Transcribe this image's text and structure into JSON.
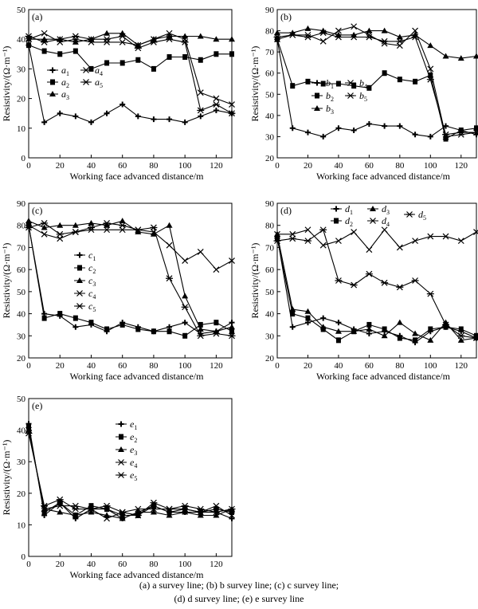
{
  "chart_data": [
    {
      "type": "line",
      "panel_label": "(a)",
      "xlabel": "Working face advanced distance/m",
      "ylabel": "Resistivity/(Ω·m⁻¹)",
      "xlim": [
        0,
        130
      ],
      "ylim": [
        0,
        50
      ],
      "xticks": [
        0,
        20,
        40,
        60,
        80,
        100,
        120
      ],
      "yticks": [
        0,
        10,
        20,
        30,
        40,
        50
      ],
      "legend_position": "center-left",
      "x": [
        0,
        10,
        20,
        30,
        40,
        50,
        60,
        70,
        80,
        90,
        100,
        110,
        120,
        130
      ],
      "series": [
        {
          "name": "a",
          "sub": "1",
          "marker": "plus",
          "values": [
            38,
            12,
            15,
            14,
            12,
            15,
            18,
            14,
            13,
            13,
            12,
            14,
            16,
            15
          ]
        },
        {
          "name": "a",
          "sub": "2",
          "marker": "square",
          "values": [
            38,
            36,
            35,
            36,
            30,
            32,
            32,
            33,
            30,
            34,
            34,
            33,
            35,
            35
          ]
        },
        {
          "name": "a",
          "sub": "3",
          "marker": "tri",
          "values": [
            40,
            40,
            40,
            39,
            40,
            42,
            42,
            38,
            40,
            41,
            41,
            41,
            40,
            40
          ]
        },
        {
          "name": "a",
          "sub": "4",
          "marker": "x",
          "values": [
            40,
            42,
            39,
            40,
            39,
            39,
            39,
            38,
            40,
            42,
            40,
            22,
            20,
            18
          ]
        },
        {
          "name": "a",
          "sub": "5",
          "marker": "star",
          "values": [
            41,
            39,
            40,
            41,
            40,
            40,
            41,
            37,
            39,
            40,
            39,
            16,
            18,
            15
          ]
        }
      ]
    },
    {
      "type": "line",
      "panel_label": "(b)",
      "xlabel": "Working face advanced distance/m",
      "ylabel": "Resistivity/(Ω·m⁻¹)",
      "xlim": [
        0,
        130
      ],
      "ylim": [
        20,
        90
      ],
      "xticks": [
        0,
        20,
        40,
        60,
        80,
        100,
        120
      ],
      "yticks": [
        20,
        30,
        40,
        50,
        60,
        70,
        80,
        90
      ],
      "legend_position": "center",
      "x": [
        0,
        10,
        20,
        30,
        40,
        50,
        60,
        70,
        80,
        90,
        100,
        110,
        120,
        130
      ],
      "series": [
        {
          "name": "b",
          "sub": "1",
          "marker": "plus",
          "values": [
            76,
            34,
            32,
            30,
            34,
            33,
            36,
            35,
            35,
            31,
            30,
            35,
            33,
            31
          ]
        },
        {
          "name": "b",
          "sub": "2",
          "marker": "square",
          "values": [
            76,
            54,
            56,
            55,
            55,
            54,
            53,
            60,
            57,
            56,
            59,
            29,
            33,
            34
          ]
        },
        {
          "name": "b",
          "sub": "3",
          "marker": "tri",
          "values": [
            79,
            79,
            81,
            80,
            78,
            78,
            80,
            80,
            77,
            78,
            73,
            68,
            67,
            68
          ]
        },
        {
          "name": "b",
          "sub": "4",
          "marker": "x",
          "values": [
            76,
            78,
            78,
            75,
            80,
            82,
            78,
            74,
            73,
            80,
            62,
            30,
            31,
            32
          ]
        },
        {
          "name": "b",
          "sub": "5",
          "marker": "star",
          "values": [
            77,
            78,
            77,
            79,
            77,
            77,
            77,
            75,
            75,
            77,
            57,
            31,
            32,
            32
          ]
        }
      ]
    },
    {
      "type": "line",
      "panel_label": "(c)",
      "xlabel": "Working face advanced distance/m",
      "ylabel": "Resistivity/(Ω·m⁻¹)",
      "xlim": [
        0,
        130
      ],
      "ylim": [
        20,
        90
      ],
      "xticks": [
        0,
        20,
        40,
        60,
        80,
        100,
        120
      ],
      "yticks": [
        20,
        30,
        40,
        50,
        60,
        70,
        80,
        90
      ],
      "legend_position": "center-left",
      "x": [
        0,
        10,
        20,
        30,
        40,
        50,
        60,
        70,
        80,
        90,
        100,
        110,
        120,
        130
      ],
      "series": [
        {
          "name": "c",
          "sub": "1",
          "marker": "plus",
          "values": [
            80,
            40,
            39,
            34,
            35,
            32,
            36,
            34,
            32,
            34,
            36,
            31,
            32,
            36
          ]
        },
        {
          "name": "c",
          "sub": "2",
          "marker": "square",
          "values": [
            80,
            38,
            40,
            38,
            36,
            33,
            35,
            33,
            32,
            32,
            30,
            35,
            36,
            32
          ]
        },
        {
          "name": "c",
          "sub": "3",
          "marker": "tri",
          "values": [
            82,
            79,
            80,
            80,
            81,
            80,
            82,
            77,
            76,
            80,
            48,
            33,
            32,
            34
          ]
        },
        {
          "name": "c",
          "sub": "4",
          "marker": "x",
          "values": [
            80,
            76,
            74,
            77,
            78,
            78,
            78,
            78,
            77,
            71,
            64,
            68,
            60,
            64
          ]
        },
        {
          "name": "c",
          "sub": "5",
          "marker": "star",
          "values": [
            79,
            81,
            76,
            77,
            79,
            81,
            80,
            78,
            79,
            56,
            43,
            30,
            31,
            30
          ]
        }
      ]
    },
    {
      "type": "line",
      "panel_label": "(d)",
      "xlabel": "Working face advanced distance/m",
      "ylabel": "Resistivity/(Ω·m⁻¹)",
      "xlim": [
        0,
        130
      ],
      "ylim": [
        20,
        90
      ],
      "xticks": [
        0,
        20,
        40,
        60,
        80,
        100,
        120
      ],
      "yticks": [
        20,
        30,
        40,
        50,
        60,
        70,
        80,
        90
      ],
      "legend_position": "top",
      "x": [
        0,
        10,
        20,
        30,
        40,
        50,
        60,
        70,
        80,
        90,
        100,
        110,
        120,
        130
      ],
      "series": [
        {
          "name": "d",
          "sub": "1",
          "marker": "plus",
          "values": [
            75,
            34,
            36,
            38,
            36,
            33,
            31,
            32,
            30,
            27,
            32,
            34,
            32,
            29
          ]
        },
        {
          "name": "d",
          "sub": "2",
          "marker": "square",
          "values": [
            74,
            40,
            38,
            33,
            28,
            32,
            35,
            33,
            29,
            28,
            33,
            34,
            33,
            30
          ]
        },
        {
          "name": "d",
          "sub": "3",
          "marker": "tri",
          "values": [
            76,
            42,
            41,
            34,
            32,
            32,
            33,
            30,
            36,
            31,
            28,
            36,
            28,
            29
          ]
        },
        {
          "name": "d",
          "sub": "4",
          "marker": "x",
          "values": [
            76,
            76,
            78,
            71,
            73,
            77,
            69,
            78,
            70,
            73,
            75,
            75,
            73,
            77
          ]
        },
        {
          "name": "d",
          "sub": "5",
          "marker": "star",
          "values": [
            73,
            74,
            73,
            78,
            55,
            53,
            58,
            54,
            52,
            55,
            49,
            35,
            30,
            29
          ]
        }
      ]
    },
    {
      "type": "line",
      "panel_label": "(e)",
      "xlabel": "Working face advanced distance/m",
      "ylabel": "Resistivity/(Ω·m⁻¹)",
      "xlim": [
        0,
        130
      ],
      "ylim": [
        0,
        50
      ],
      "xticks": [
        0,
        20,
        40,
        60,
        80,
        100,
        120
      ],
      "yticks": [
        0,
        10,
        20,
        30,
        40,
        50
      ],
      "legend_position": "center",
      "x": [
        0,
        10,
        20,
        30,
        40,
        50,
        60,
        70,
        80,
        90,
        100,
        110,
        120,
        130
      ],
      "series": [
        {
          "name": "e",
          "sub": "1",
          "marker": "plus",
          "values": [
            42,
            13,
            17,
            12,
            15,
            15,
            12,
            14,
            16,
            14,
            14,
            14,
            14,
            12
          ]
        },
        {
          "name": "e",
          "sub": "2",
          "marker": "square",
          "values": [
            41,
            14,
            17,
            13,
            16,
            15,
            13,
            13,
            16,
            14,
            15,
            14,
            15,
            14
          ]
        },
        {
          "name": "e",
          "sub": "3",
          "marker": "tri",
          "values": [
            40,
            15,
            14,
            13,
            14,
            13,
            12,
            14,
            14,
            13,
            14,
            13,
            13,
            15
          ]
        },
        {
          "name": "e",
          "sub": "4",
          "marker": "x",
          "values": [
            40,
            15,
            16,
            16,
            15,
            12,
            14,
            15,
            15,
            15,
            15,
            14,
            16,
            13
          ]
        },
        {
          "name": "e",
          "sub": "5",
          "marker": "star",
          "values": [
            39,
            16,
            18,
            15,
            15,
            16,
            14,
            13,
            17,
            15,
            16,
            15,
            14,
            15
          ]
        }
      ]
    }
  ],
  "caption": {
    "line1": "(a) a survey line; (b) b survey line; (c) c survey line;",
    "line2": "(d) d survey line; (e) e survey line"
  }
}
